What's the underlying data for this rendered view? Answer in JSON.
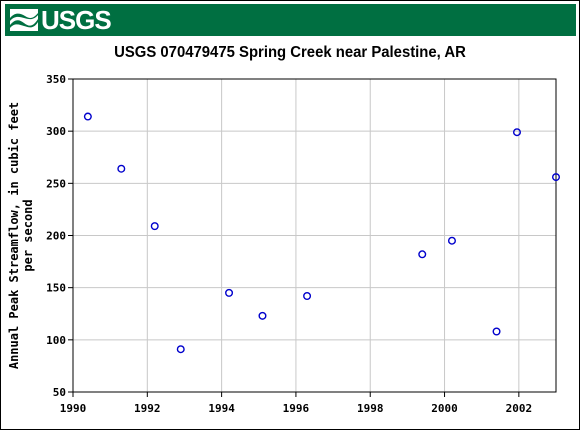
{
  "header": {
    "logo_text": "USGS",
    "brand_color": "#006f41"
  },
  "chart_data": {
    "type": "scatter",
    "title": "USGS 070479475 Spring Creek near Palestine, AR",
    "xlabel": "",
    "ylabel_lines": [
      "Annual Peak Streamflow, in cubic feet",
      "per second"
    ],
    "xlim": [
      1990,
      2003
    ],
    "ylim": [
      50,
      350
    ],
    "x_ticks": [
      1990,
      1992,
      1994,
      1996,
      1998,
      2000,
      2002
    ],
    "y_ticks": [
      50,
      100,
      150,
      200,
      250,
      300,
      350
    ],
    "grid": true,
    "marker_color": "#0000cc",
    "series": [
      {
        "x": [
          1990.4,
          1991.3,
          1992.2,
          1992.9,
          1994.2,
          1995.1,
          1996.3,
          1999.4,
          2000.2,
          2001.4,
          2001.95,
          2003.0
        ],
        "y": [
          314,
          264,
          209,
          91,
          145,
          123,
          142,
          182,
          195,
          108,
          299,
          256
        ]
      }
    ]
  }
}
